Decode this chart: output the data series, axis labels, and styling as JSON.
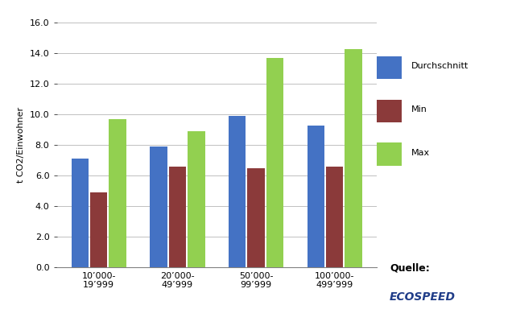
{
  "categories": [
    "10’000-\n19’999",
    "20’000-\n49’999",
    "50’000-\n99’999",
    "100’000-\n499’999"
  ],
  "durchschnitt": [
    7.1,
    7.9,
    9.9,
    9.3
  ],
  "min": [
    4.9,
    6.6,
    6.5,
    6.6
  ],
  "max": [
    9.7,
    8.9,
    13.7,
    14.3
  ],
  "bar_colors": {
    "Durchschnitt": "#4472C4",
    "Min": "#8B3A3A",
    "Max": "#92D050"
  },
  "ylabel": "t CO2/Einwohner",
  "ylim": [
    0,
    16.0
  ],
  "yticks": [
    0.0,
    2.0,
    4.0,
    6.0,
    8.0,
    10.0,
    12.0,
    14.0,
    16.0
  ],
  "legend_labels": [
    "Durchschnitt",
    "Min",
    "Max"
  ],
  "quelle_text": "Quelle:",
  "ecospeed_text": "ECOSPEED",
  "background_color": "#FFFFFF",
  "grid_color": "#C0C0C0"
}
